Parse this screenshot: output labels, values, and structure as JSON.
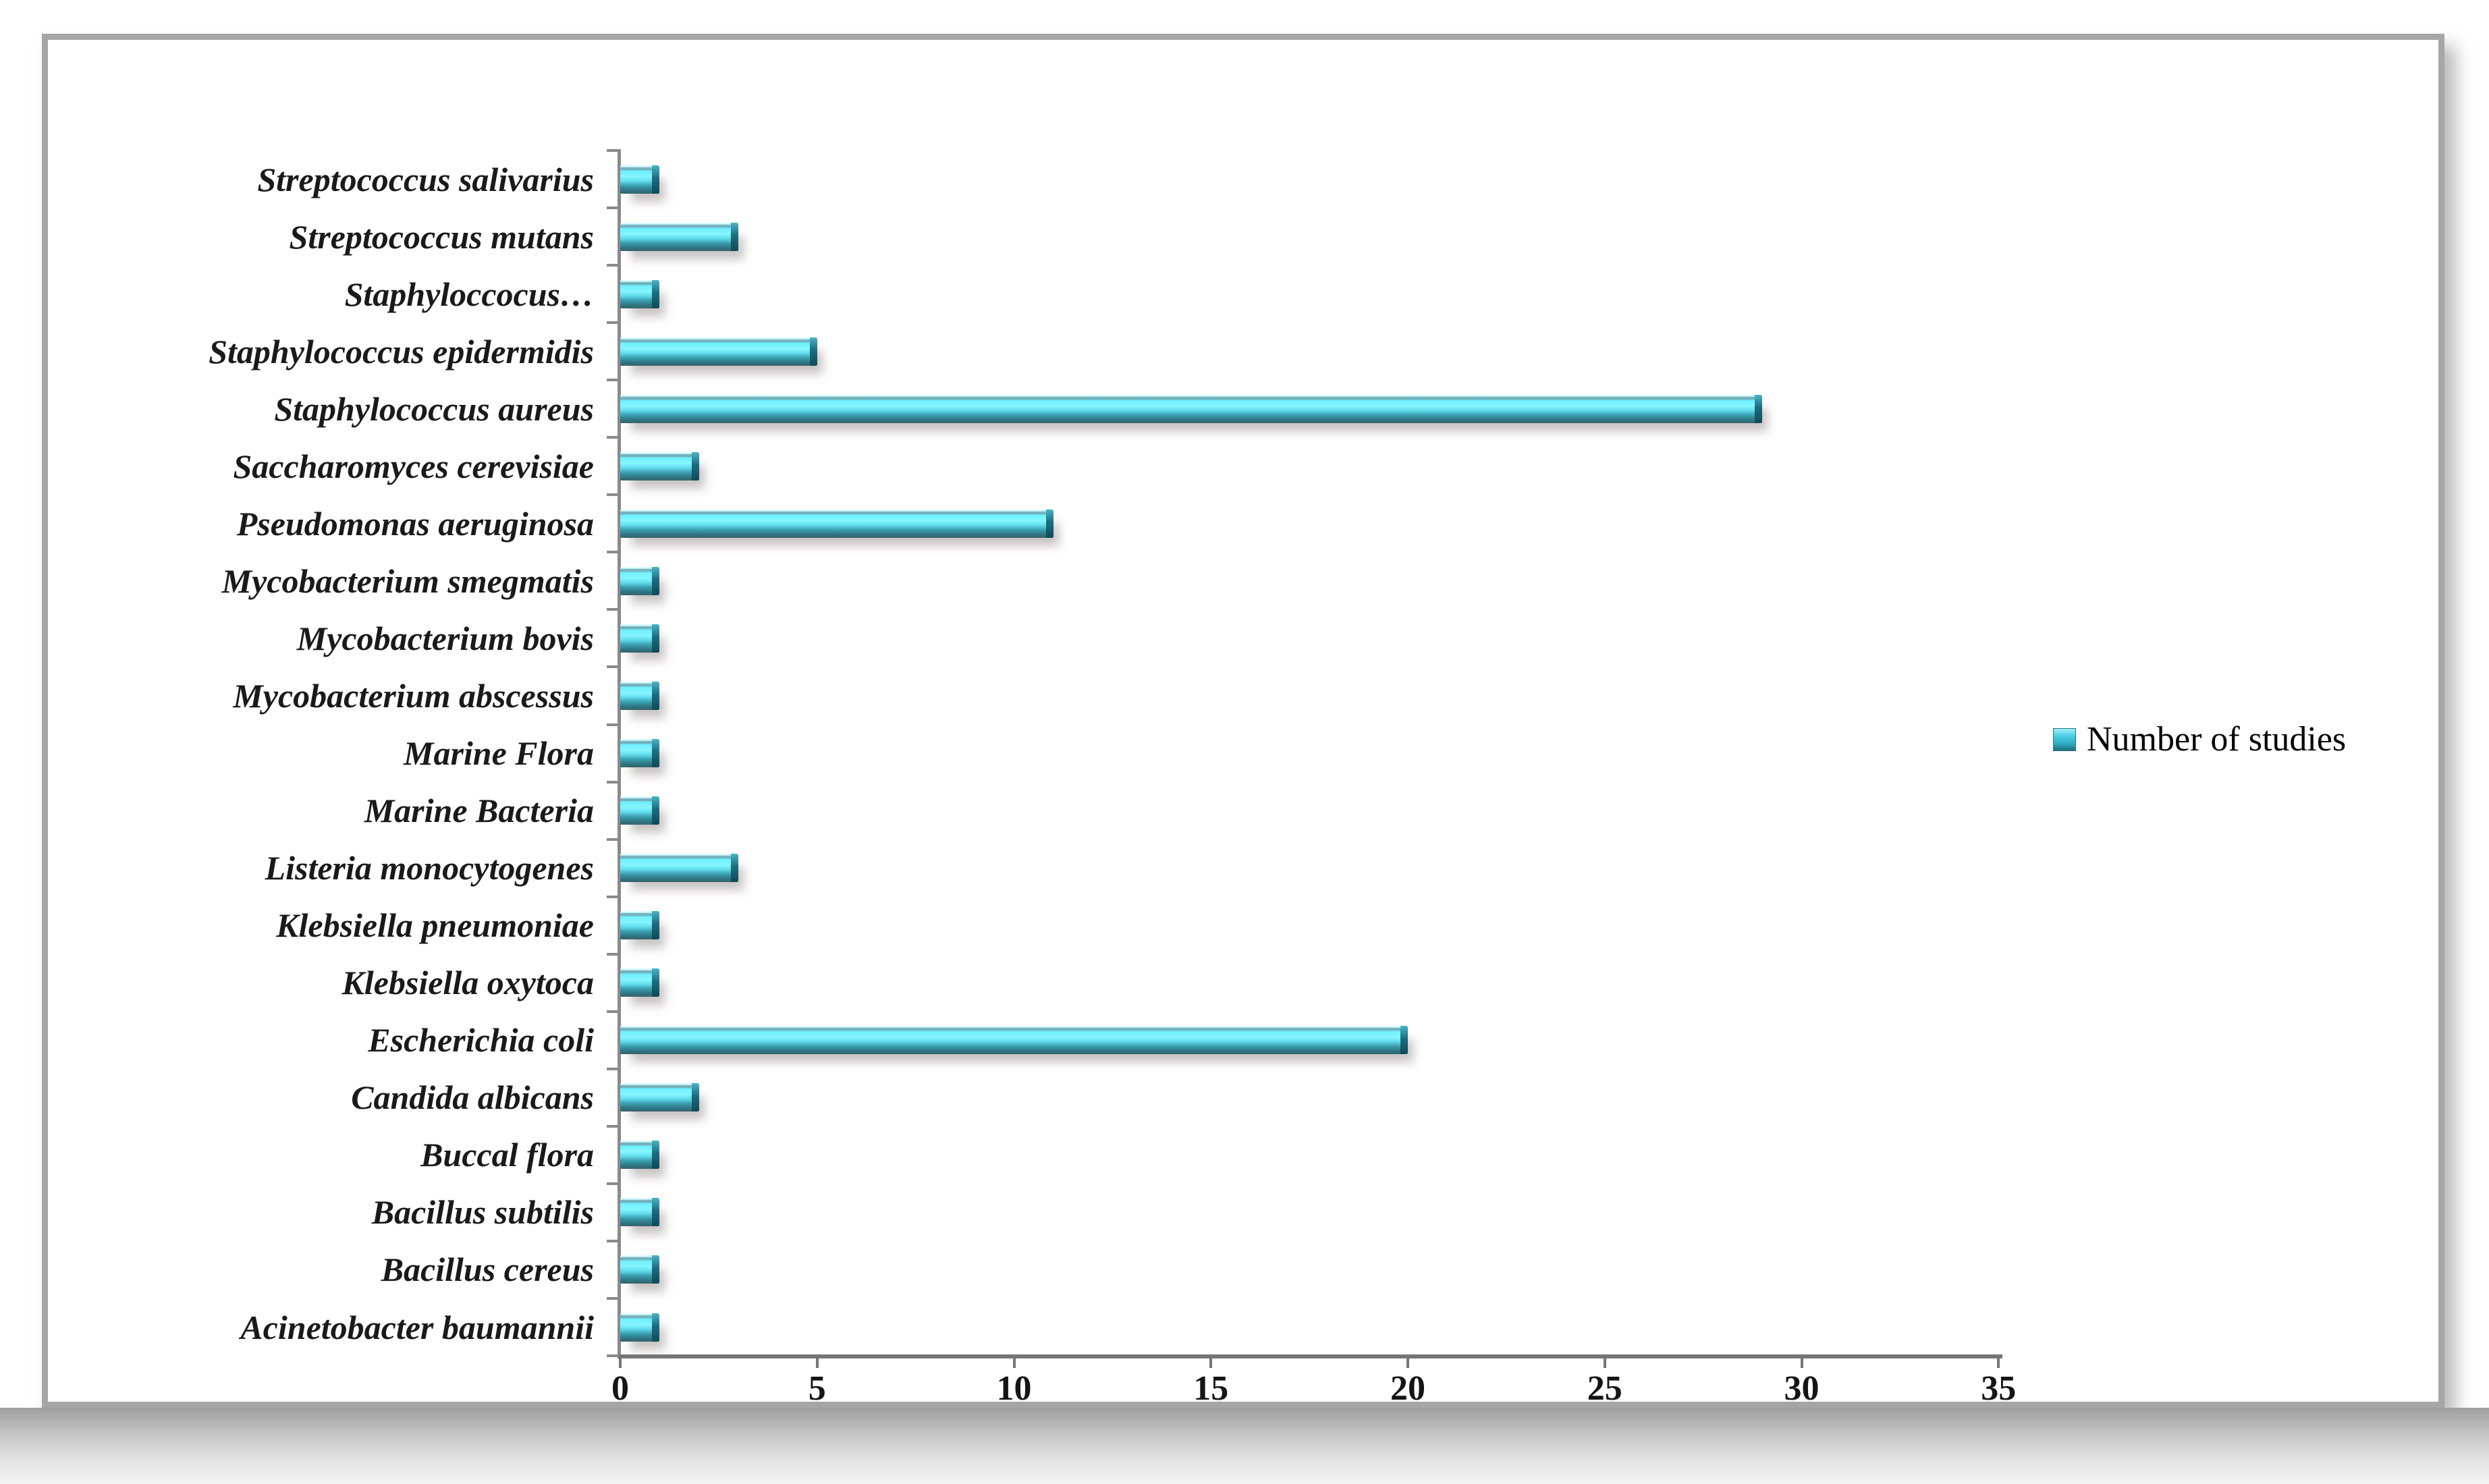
{
  "chart_data": {
    "type": "bar",
    "orientation": "horizontal",
    "title": "",
    "xlabel": "",
    "ylabel": "",
    "legend": "Number of studies",
    "legend_position": "right-middle",
    "grid": false,
    "xlim": [
      0,
      35
    ],
    "x_ticks": [
      0,
      5,
      10,
      15,
      20,
      25,
      30,
      35
    ],
    "bar_color": "#4fd5e8",
    "bar_color_dark": "#2e7683",
    "axis_color": "#8a8a8a",
    "categories": [
      "Streptococcus salivarius",
      "Streptococcus mutans",
      "Staphyloccocus…",
      "Staphylococcus epidermidis",
      "Staphylococcus aureus",
      "Saccharomyces cerevisiae",
      "Pseudomonas aeruginosa",
      "Mycobacterium smegmatis",
      "Mycobacterium bovis",
      "Mycobacterium abscessus",
      "Marine Flora",
      "Marine Bacteria",
      "Listeria monocytogenes",
      "Klebsiella pneumoniae",
      "Klebsiella oxytoca",
      "Escherichia coli",
      "Candida albicans",
      "Buccal flora",
      "Bacillus subtilis",
      "Bacillus cereus",
      "Acinetobacter baumannii"
    ],
    "values": [
      1,
      3,
      1,
      5,
      29,
      2,
      11,
      1,
      1,
      1,
      1,
      1,
      3,
      1,
      1,
      20,
      2,
      1,
      1,
      1,
      1
    ]
  }
}
